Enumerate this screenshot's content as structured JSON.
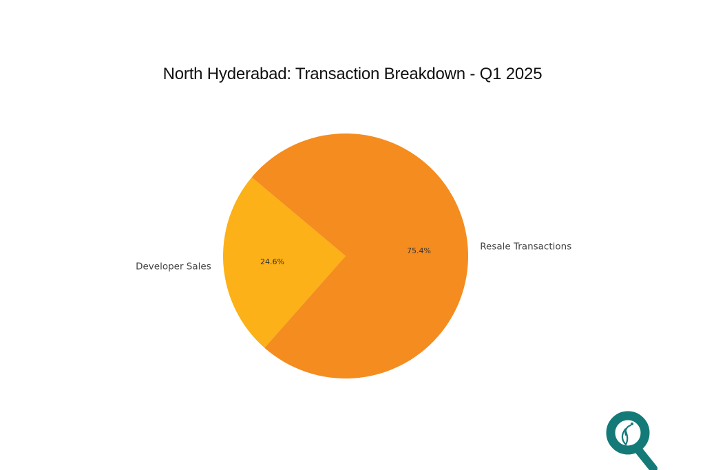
{
  "chart_data": {
    "type": "pie",
    "title": "North Hyderabad: Transaction Breakdown - Q1 2025",
    "categories": [
      "Developer Sales",
      "Resale Transactions"
    ],
    "values": [
      24.6,
      75.4
    ],
    "labels": [
      "24.6%",
      "75.4%"
    ],
    "colors": [
      "#FBB117",
      "#F58C1F"
    ],
    "start_angle_deg": 140,
    "legend": "none"
  },
  "logo": {
    "icon": "magnifier-leaf-logo",
    "color": "#137A78"
  }
}
